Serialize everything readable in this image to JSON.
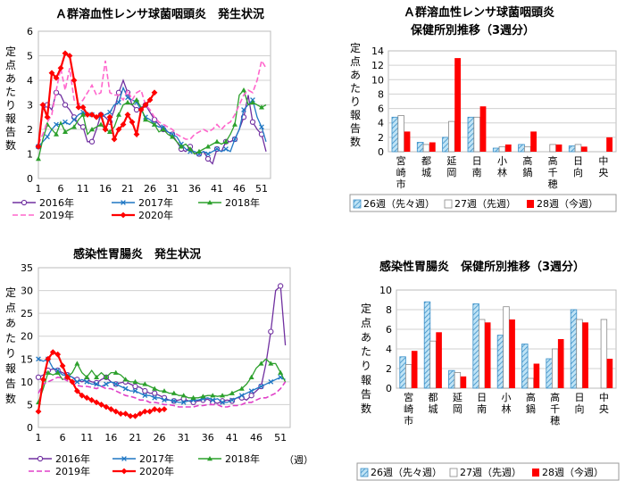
{
  "charts": [
    {
      "id": "strep",
      "title": "Ａ群溶血性レンサ球菌咽頭炎　発生状況",
      "type": "line",
      "ylabel": "定点あたり報告数",
      "ylim": [
        0,
        6
      ],
      "yticks": [
        "0",
        "1",
        "2",
        "3",
        "4",
        "5",
        "6"
      ],
      "xlim": [
        1,
        53
      ],
      "xticks": [
        "1",
        "6",
        "11",
        "16",
        "21",
        "26",
        "31",
        "36",
        "41",
        "46",
        "51"
      ],
      "series": [
        {
          "name": "2016年",
          "color": "#7030A0",
          "style": "circle",
          "values": [
            1.3,
            2.8,
            3.0,
            2.8,
            3.5,
            3.4,
            3.0,
            2.8,
            2.5,
            2.2,
            2.1,
            1.5,
            1.5,
            2.0,
            2.6,
            2.5,
            2.3,
            2.8,
            3.5,
            4.0,
            3.5,
            3.0,
            2.8,
            2.9,
            3.0,
            2.7,
            2.4,
            2.2,
            2.0,
            1.9,
            1.8,
            1.5,
            1.2,
            1.1,
            1.3,
            1.0,
            1.0,
            1.1,
            0.8,
            0.6,
            1.2,
            1.1,
            1.5,
            1.5,
            1.6,
            2.0,
            2.5,
            3.4,
            2.3,
            2.0,
            1.8,
            1.1
          ]
        },
        {
          "name": "2017年",
          "color": "#1F77C4",
          "style": "x",
          "values": [
            1.3,
            1.5,
            1.7,
            2.0,
            2.2,
            2.2,
            2.3,
            2.2,
            2.4,
            2.6,
            2.7,
            2.6,
            2.6,
            2.5,
            2.5,
            2.6,
            2.7,
            3.0,
            3.1,
            3.7,
            3.3,
            3.2,
            3.1,
            2.8,
            2.5,
            2.4,
            2.2,
            2.1,
            2.1,
            1.9,
            1.8,
            1.7,
            1.4,
            1.2,
            1.1,
            1.1,
            1.0,
            1.1,
            1.0,
            1.1,
            1.2,
            1.1,
            1.2,
            1.1,
            1.6,
            2.0,
            2.8,
            3.0,
            3.2,
            2.5,
            2.1,
            1.5
          ]
        },
        {
          "name": "2018年",
          "color": "#2CA02C",
          "style": "triangle",
          "values": [
            0.8,
            1.6,
            2.2,
            2.0,
            1.8,
            2.3,
            1.9,
            2.0,
            2.1,
            2.4,
            2.6,
            1.8,
            2.0,
            2.1,
            2.2,
            2.0,
            1.9,
            2.1,
            2.6,
            3.0,
            3.1,
            3.0,
            3.2,
            2.9,
            2.4,
            2.3,
            2.2,
            1.9,
            2.0,
            1.8,
            1.7,
            1.5,
            1.3,
            1.4,
            1.2,
            1.0,
            1.1,
            1.2,
            1.3,
            1.4,
            1.5,
            1.4,
            1.5,
            1.8,
            2.2,
            3.4,
            3.6,
            3.0,
            3.1,
            3.0,
            2.9,
            3.0
          ]
        },
        {
          "name": "2019年",
          "color": "#FF66CC",
          "style": "dash",
          "values": [
            1.4,
            1.8,
            2.3,
            2.6,
            3.6,
            4.5,
            3.6,
            4.5,
            3.2,
            3.0,
            3.2,
            3.5,
            3.8,
            3.4,
            3.5,
            4.8,
            3.5,
            3.4,
            3.4,
            3.2,
            3.6,
            3.2,
            3.5,
            3.6,
            3.0,
            2.8,
            2.5,
            2.3,
            2.2,
            2.1,
            2.0,
            1.8,
            1.7,
            1.6,
            1.6,
            1.8,
            1.9,
            2.0,
            1.9,
            2.0,
            2.2,
            2.0,
            2.2,
            2.3,
            2.6,
            3.0,
            3.4,
            3.6,
            3.5,
            4.0,
            4.8,
            4.5
          ]
        },
        {
          "name": "2020年",
          "color": "#FF0000",
          "style": "diamond",
          "values": [
            1.3,
            3.0,
            2.5,
            4.3,
            4.1,
            4.5,
            5.1,
            5.0,
            4.0,
            2.9,
            2.9,
            2.6,
            2.6,
            2.5,
            2.6,
            2.0,
            2.5,
            1.6,
            2.0,
            2.2,
            2.6,
            2.3,
            1.8,
            2.8,
            3.0,
            3.2,
            3.5
          ]
        }
      ]
    },
    {
      "id": "strep_bar",
      "title": "Ａ群溶血性レンサ球菌咽頭炎\n保健所別推移（3週分）",
      "type": "bar",
      "ylabel": "定点あたり報告数",
      "ylim": [
        0,
        14
      ],
      "yticks": [
        "0",
        "2",
        "4",
        "6",
        "8",
        "10",
        "12",
        "14"
      ],
      "categories": [
        "宮崎市",
        "都城",
        "延岡",
        "日南",
        "小林",
        "高鍋",
        "高千穂",
        "日向",
        "中央"
      ],
      "series": [
        {
          "name": "26週（先々週）",
          "color": "#8FC8E8",
          "pattern": "hatch",
          "values": [
            4.8,
            1.3,
            2.0,
            4.8,
            0.5,
            1.0,
            0.0,
            0.8,
            0.0
          ]
        },
        {
          "name": "27週（先週）",
          "color": "#FFFFFF",
          "pattern": "open",
          "values": [
            5.0,
            1.0,
            4.2,
            4.8,
            0.7,
            0.7,
            1.0,
            1.0,
            0.0
          ]
        },
        {
          "name": "28週（今週）",
          "color": "#FF0000",
          "pattern": "solid",
          "values": [
            2.8,
            1.3,
            13.0,
            6.3,
            1.0,
            2.8,
            1.0,
            0.7,
            2.0
          ]
        }
      ]
    },
    {
      "id": "gastro",
      "title": "感染性胃腸炎　発生状況",
      "type": "line",
      "ylabel": "定点あたり報告数",
      "ylim": [
        0,
        35
      ],
      "yticks": [
        "0",
        "5",
        "10",
        "15",
        "20",
        "25",
        "30",
        "35"
      ],
      "xlim": [
        1,
        53
      ],
      "xticks": [
        "1",
        "6",
        "11",
        "16",
        "21",
        "26",
        "31",
        "36",
        "41",
        "46",
        "51"
      ],
      "xunit": "（週）",
      "series": [
        {
          "name": "2016年",
          "color": "#7030A0",
          "style": "circle",
          "values": [
            11.0,
            11.5,
            12.5,
            12.8,
            12.5,
            12.0,
            11.5,
            11.0,
            10.5,
            10.0,
            10.5,
            10.0,
            9.8,
            10.5,
            11.0,
            10.0,
            9.5,
            9.8,
            10.0,
            9.5,
            9.0,
            8.8,
            8.0,
            7.5,
            7.5,
            7.0,
            6.5,
            6.0,
            5.8,
            6.0,
            6.3,
            5.8,
            5.5,
            5.8,
            6.0,
            6.2,
            5.5,
            5.3,
            5.8,
            6.0,
            5.8,
            6.5,
            6.5,
            6.0,
            7.0,
            8.0,
            9.0,
            14.0,
            21.0,
            30.0,
            31.0,
            18.0
          ]
        },
        {
          "name": "2017年",
          "color": "#1F77C4",
          "style": "x",
          "values": [
            15.0,
            14.5,
            15.0,
            13.0,
            12.5,
            11.5,
            11.5,
            11.0,
            10.0,
            10.5,
            10.0,
            9.5,
            9.5,
            9.0,
            9.5,
            10.0,
            9.5,
            9.0,
            8.5,
            8.0,
            8.0,
            7.5,
            7.0,
            7.0,
            6.5,
            6.5,
            6.0,
            6.0,
            5.8,
            5.5,
            5.5,
            5.8,
            6.0,
            6.0,
            6.3,
            6.5,
            6.0,
            6.3,
            5.5,
            5.5,
            6.0,
            6.5,
            7.0,
            7.5,
            8.0,
            8.5,
            9.0,
            9.5,
            10.0,
            10.5,
            11.0,
            10.5
          ]
        },
        {
          "name": "2018年",
          "color": "#2CA02C",
          "style": "triangle",
          "values": [
            5.5,
            8.5,
            12.0,
            11.5,
            12.0,
            10.5,
            11.0,
            12.0,
            14.0,
            12.0,
            11.0,
            12.5,
            11.0,
            12.0,
            11.0,
            12.0,
            12.0,
            11.5,
            10.5,
            10.0,
            10.0,
            9.5,
            9.5,
            9.0,
            8.5,
            8.0,
            8.0,
            7.5,
            7.5,
            7.0,
            7.0,
            6.5,
            6.5,
            6.5,
            6.8,
            7.0,
            7.0,
            6.8,
            7.0,
            7.0,
            7.5,
            8.0,
            8.5,
            9.5,
            11.0,
            13.0,
            14.0,
            15.0,
            14.0,
            14.0,
            12.0,
            10.0
          ]
        },
        {
          "name": "2019年",
          "color": "#E040C8",
          "style": "dash",
          "values": [
            7.5,
            9.5,
            10.0,
            10.5,
            11.0,
            10.8,
            10.2,
            9.8,
            9.2,
            9.0,
            9.0,
            8.8,
            8.5,
            9.0,
            8.5,
            8.5,
            8.0,
            7.5,
            7.0,
            6.8,
            6.5,
            6.0,
            6.0,
            5.5,
            5.5,
            5.3,
            5.0,
            5.0,
            4.8,
            4.5,
            4.5,
            4.5,
            4.5,
            4.8,
            4.8,
            5.0,
            5.0,
            5.0,
            4.5,
            4.5,
            4.8,
            4.8,
            5.0,
            5.5,
            5.5,
            6.0,
            6.5,
            6.5,
            7.0,
            7.5,
            8.5,
            10.0
          ]
        },
        {
          "name": "2020年",
          "color": "#FF0000",
          "style": "diamond",
          "values": [
            3.5,
            10.5,
            15.0,
            16.5,
            16.0,
            13.5,
            11.0,
            10.0,
            8.0,
            7.0,
            6.5,
            6.0,
            5.5,
            5.0,
            4.5,
            4.0,
            3.5,
            3.0,
            3.0,
            2.5,
            2.5,
            3.0,
            3.5,
            3.5,
            4.0,
            3.8,
            4.0
          ]
        }
      ]
    },
    {
      "id": "gastro_bar",
      "title": "感染性胃腸炎　保健所別推移（3週分）",
      "type": "bar",
      "ylabel": "定点あたり報告数",
      "ylim": [
        0,
        10
      ],
      "yticks": [
        "0",
        "2",
        "4",
        "6",
        "8",
        "10"
      ],
      "categories": [
        "宮崎市",
        "都城",
        "延岡",
        "日南",
        "小林",
        "高鍋",
        "高千穂",
        "日向",
        "中央"
      ],
      "series": [
        {
          "name": "26週（先々週）",
          "color": "#8FC8E8",
          "pattern": "hatch",
          "values": [
            3.2,
            8.8,
            1.8,
            8.6,
            5.4,
            4.5,
            3.0,
            8.0,
            0.0
          ]
        },
        {
          "name": "27週（先週）",
          "color": "#FFFFFF",
          "pattern": "open",
          "values": [
            2.4,
            4.8,
            1.6,
            7.0,
            8.3,
            1.0,
            4.0,
            7.0,
            7.0
          ]
        },
        {
          "name": "28週（今週）",
          "color": "#FF0000",
          "pattern": "solid",
          "values": [
            3.8,
            5.7,
            1.2,
            6.7,
            7.0,
            2.5,
            5.0,
            6.7,
            3.0
          ]
        }
      ]
    }
  ]
}
